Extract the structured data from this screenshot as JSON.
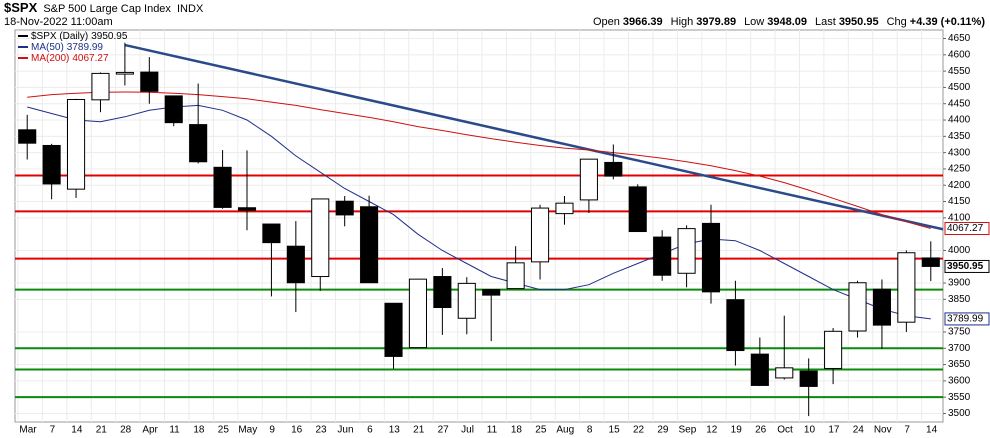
{
  "header": {
    "symbol": "$SPX",
    "name": "S&P 500 Large Cap Index",
    "exchange": "INDX",
    "date": "18-Nov-2022 11:00am",
    "quote": [
      {
        "label": "Open",
        "value": "3966.39"
      },
      {
        "label": "High",
        "value": "3979.89"
      },
      {
        "label": "Low",
        "value": "3948.09"
      },
      {
        "label": "Last",
        "value": "3950.95"
      },
      {
        "label": "Chg",
        "value": "+4.39 (+0.11%)"
      }
    ]
  },
  "chart_data": {
    "type": "candlestick",
    "categories": [
      "Mar",
      "7",
      "14",
      "21",
      "28",
      "Apr",
      "11",
      "18",
      "25",
      "May",
      "9",
      "16",
      "23",
      "Jun",
      "6",
      "13",
      "21",
      "27",
      "Jul",
      "11",
      "18",
      "25",
      "Aug",
      "8",
      "15",
      "22",
      "29",
      "Sep",
      "12",
      "19",
      "26",
      "Oct",
      "10",
      "17",
      "24",
      "Nov",
      "7",
      "14"
    ],
    "price": {
      "name": "$SPX (Daily)",
      "last": 3950.95
    },
    "open": [
      4370,
      4322,
      4188,
      4462,
      4541,
      4547,
      4474,
      4386,
      4255,
      4131,
      4081,
      4013,
      3920,
      4151,
      4134,
      3838,
      3702,
      3920,
      3792,
      3880,
      3883,
      3965,
      4113,
      4155,
      4270,
      4195,
      4041,
      3930,
      4083,
      3849,
      3682,
      3609,
      3630,
      3638,
      3753,
      3881,
      3780,
      3977
    ],
    "high": [
      4416,
      4327,
      4465,
      4546,
      4637,
      4593,
      4471,
      4512,
      4308,
      4307,
      4081,
      4090,
      4158,
      4167,
      4168,
      3838,
      3913,
      3946,
      3918,
      3880,
      4013,
      4140,
      4167,
      4280,
      4325,
      4203,
      4062,
      4077,
      4140,
      3907,
      3733,
      3800,
      3669,
      3762,
      3907,
      3911,
      4000,
      4028
    ],
    "low": [
      4279,
      4157,
      4161,
      4424,
      4506,
      4450,
      4381,
      4267,
      4128,
      4062,
      3859,
      3811,
      3876,
      4074,
      3901,
      3637,
      3702,
      3741,
      3743,
      3722,
      3883,
      3911,
      4079,
      4115,
      4218,
      4057,
      3907,
      3887,
      3837,
      3647,
      3584,
      3604,
      3492,
      3590,
      3733,
      3698,
      3750,
      3906
    ],
    "close": [
      4329,
      4204,
      4463,
      4543,
      4546,
      4488,
      4392,
      4272,
      4132,
      4123,
      4024,
      3901,
      4158,
      4109,
      3901,
      3675,
      3912,
      3825,
      3899,
      3863,
      3962,
      4130,
      4145,
      4280,
      4228,
      4058,
      3924,
      4067,
      3873,
      3693,
      3586,
      3640,
      3583,
      3752,
      3901,
      3771,
      3993,
      3951
    ],
    "series": [
      {
        "name": "MA(50)",
        "color": "#1f2f8a",
        "last": 3789.99,
        "values": [
          4440,
          4420,
          4400,
          4395,
          4410,
          4430,
          4440,
          4445,
          4430,
          4400,
          4350,
          4290,
          4240,
          4190,
          4150,
          4110,
          4050,
          4000,
          3960,
          3920,
          3900,
          3880,
          3880,
          3895,
          3930,
          3960,
          3990,
          4020,
          4035,
          4030,
          4000,
          3960,
          3920,
          3880,
          3850,
          3820,
          3800,
          3789.99
        ]
      },
      {
        "name": "MA(200)",
        "color": "#d01010",
        "last": 4067.27,
        "values": [
          4470,
          4478,
          4482,
          4485,
          4486,
          4485,
          4482,
          4478,
          4472,
          4465,
          4455,
          4445,
          4432,
          4420,
          4408,
          4395,
          4380,
          4368,
          4355,
          4343,
          4332,
          4322,
          4314,
          4308,
          4300,
          4292,
          4283,
          4272,
          4260,
          4245,
          4228,
          4208,
          4185,
          4160,
          4135,
          4110,
          4088,
          4067.27
        ]
      }
    ],
    "hlines": [
      {
        "value": 4230,
        "color": "#e00000"
      },
      {
        "value": 4120,
        "color": "#e00000"
      },
      {
        "value": 3975,
        "color": "#e00000"
      },
      {
        "value": 3880,
        "color": "#0a8a0a"
      },
      {
        "value": 3700,
        "color": "#0a8a0a"
      },
      {
        "value": 3635,
        "color": "#0a8a0a"
      },
      {
        "value": 3550,
        "color": "#0a8a0a"
      }
    ],
    "trendline": {
      "start": "28",
      "color": "#2a4a8a",
      "values": [
        4630,
        4065
      ]
    },
    "ylim": [
      3480,
      4670
    ],
    "yticks": [
      3500,
      3550,
      3600,
      3650,
      3700,
      3750,
      3850,
      3900,
      4000,
      4100,
      4150,
      4200,
      4250,
      4300,
      4350,
      4400,
      4450,
      4500,
      4550,
      4600,
      4650
    ],
    "grid": true
  }
}
